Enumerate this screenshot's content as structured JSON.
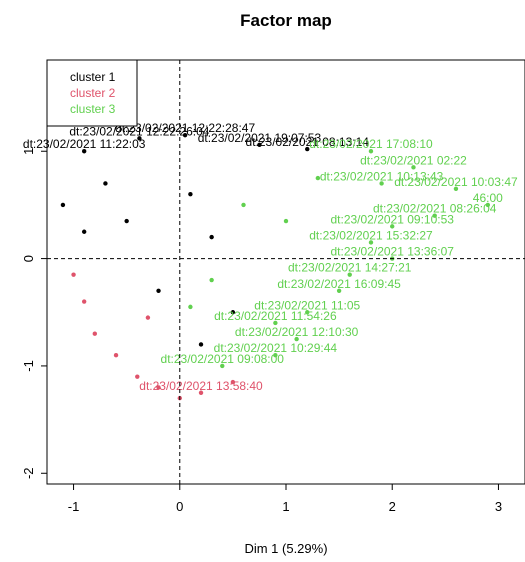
{
  "chart_data": {
    "type": "scatter",
    "title": "Factor map",
    "xlabel": "Dim 1 (5.29%)",
    "ylabel": "",
    "xlim": [
      -1.25,
      3.25
    ],
    "ylim": [
      -2.1,
      1.85
    ],
    "x_ticks": [
      -1,
      0,
      1,
      2,
      3
    ],
    "y_ticks": [
      -2,
      -1,
      0,
      1
    ],
    "grid": false,
    "reference_lines": {
      "x": 0,
      "y": 0,
      "style": "dashed"
    },
    "legend_position": "top-left",
    "series": [
      {
        "name": "cluster 1",
        "color": "#000000",
        "points": [
          {
            "x": -0.38,
            "y": 1.12,
            "label": "dt:23/02/2021 12:22:26:04"
          },
          {
            "x": 0.05,
            "y": 1.15,
            "label": "dt:23/02/2021 12:22:28:47"
          },
          {
            "x": -0.9,
            "y": 1.0,
            "label": "dt:23/02/2021 11:22:03"
          },
          {
            "x": 0.75,
            "y": 1.06,
            "label": "dt:23/02/2021 19:07:53"
          },
          {
            "x": 1.2,
            "y": 1.02,
            "label": "dt:23/02/2021 08:13:14"
          },
          {
            "x": -0.7,
            "y": 0.7
          },
          {
            "x": -1.1,
            "y": 0.5
          },
          {
            "x": -0.5,
            "y": 0.35
          },
          {
            "x": -0.9,
            "y": 0.25
          },
          {
            "x": 0.1,
            "y": 0.6
          },
          {
            "x": 0.3,
            "y": 0.2
          },
          {
            "x": -0.2,
            "y": -0.3
          },
          {
            "x": 0.5,
            "y": -0.5
          },
          {
            "x": 0.2,
            "y": -0.8
          }
        ]
      },
      {
        "name": "cluster 2",
        "color": "#df536b",
        "points": [
          {
            "x": -0.9,
            "y": -0.4
          },
          {
            "x": -1.0,
            "y": -0.15
          },
          {
            "x": -0.8,
            "y": -0.7
          },
          {
            "x": -0.6,
            "y": -0.9
          },
          {
            "x": -0.4,
            "y": -1.1
          },
          {
            "x": -0.2,
            "y": -1.2
          },
          {
            "x": 0.2,
            "y": -1.25,
            "label": "dt:23/02/2021 13:58:40"
          },
          {
            "x": 0.0,
            "y": -1.3
          },
          {
            "x": 0.5,
            "y": -1.15
          },
          {
            "x": -0.3,
            "y": -0.55
          }
        ]
      },
      {
        "name": "cluster 3",
        "color": "#61d04f",
        "points": [
          {
            "x": 1.8,
            "y": 1.0,
            "label": "dt:23/02/2021 17:08:10"
          },
          {
            "x": 2.2,
            "y": 0.85,
            "label": "dt:23/02/2021 02:22"
          },
          {
            "x": 1.9,
            "y": 0.7,
            "label": "dt:23/02/2021 10:13:43"
          },
          {
            "x": 2.6,
            "y": 0.65,
            "label": "dt:23/02/2021 10:03:47"
          },
          {
            "x": 2.9,
            "y": 0.5,
            "label": "46:00"
          },
          {
            "x": 2.4,
            "y": 0.4,
            "label": "dt:23/02/2021 08:26:04"
          },
          {
            "x": 2.0,
            "y": 0.3,
            "label": "dt:23/02/2021 09:10:53"
          },
          {
            "x": 1.8,
            "y": 0.15,
            "label": "dt:23/02/2021 15:32:27"
          },
          {
            "x": 2.0,
            "y": 0.0,
            "label": "dt:23/02/2021 13:36:07"
          },
          {
            "x": 1.6,
            "y": -0.15,
            "label": "dt:23/02/2021 14:27:21"
          },
          {
            "x": 1.5,
            "y": -0.3,
            "label": "dt:23/02/2021 16:09:45"
          },
          {
            "x": 1.2,
            "y": -0.5,
            "label": "dt:23/02/2021 11:05"
          },
          {
            "x": 0.9,
            "y": -0.6,
            "label": "dt:23/02/2021 11:54:26"
          },
          {
            "x": 1.1,
            "y": -0.75,
            "label": "dt:23/02/2021 12:10:30"
          },
          {
            "x": 0.9,
            "y": -0.9,
            "label": "dt:23/02/2021 10:29:44"
          },
          {
            "x": 0.4,
            "y": -1.0,
            "label": "dt:23/02/2021 09:08:00"
          },
          {
            "x": 0.6,
            "y": 0.5
          },
          {
            "x": 1.0,
            "y": 0.35
          },
          {
            "x": 0.3,
            "y": -0.2
          },
          {
            "x": 0.1,
            "y": -0.45
          },
          {
            "x": 1.3,
            "y": 0.75
          }
        ]
      }
    ]
  }
}
